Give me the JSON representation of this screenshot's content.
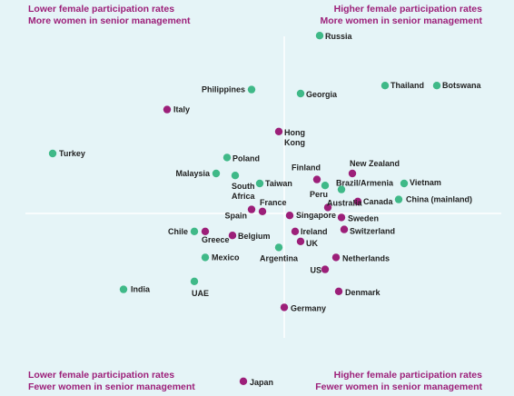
{
  "quadrants": {
    "top_left": {
      "line1": "Lower female participation rates",
      "line2": "More women in senior management"
    },
    "top_right": {
      "line1": "Higher female participation rates",
      "line2": "More women in senior management"
    },
    "bottom_left": {
      "line1": "Lower female participation rates",
      "line2": "Fewer women in senior management"
    },
    "bottom_right": {
      "line1": "Higher female participation rates",
      "line2": "Fewer women in senior management"
    }
  },
  "colors": {
    "background": "#e5f4f7",
    "green": "#3fb988",
    "purple": "#9c1f79",
    "axis": "#ffffff",
    "label": "#1f1f1f"
  },
  "chart_data": {
    "type": "scatter",
    "title": "",
    "xlabel": "",
    "ylabel": "",
    "xlim": [
      -1,
      1
    ],
    "ylim": [
      -1,
      1
    ],
    "grid": false,
    "quadrant_axes": true,
    "series": [
      {
        "color": "green",
        "points": [
          {
            "label": "Russia",
            "x": 0.13,
            "y": 0.89
          },
          {
            "label": "Philippines",
            "x": -0.12,
            "y": 0.62
          },
          {
            "label": "Georgia",
            "x": 0.06,
            "y": 0.6
          },
          {
            "label": "Thailand",
            "x": 0.37,
            "y": 0.64
          },
          {
            "label": "Botswana",
            "x": 0.56,
            "y": 0.64
          },
          {
            "label": "Turkey",
            "x": -0.85,
            "y": 0.3
          },
          {
            "label": "Poland",
            "x": -0.21,
            "y": 0.28
          },
          {
            "label": "Malaysia",
            "x": -0.25,
            "y": 0.2
          },
          {
            "label": "South Africa",
            "x": -0.18,
            "y": 0.19
          },
          {
            "label": "Taiwan",
            "x": -0.09,
            "y": 0.15
          },
          {
            "label": "Peru",
            "x": 0.15,
            "y": 0.14
          },
          {
            "label": "Brazil/Armenia",
            "x": 0.21,
            "y": 0.12
          },
          {
            "label": "Vietnam",
            "x": 0.44,
            "y": 0.15
          },
          {
            "label": "China (mainland)",
            "x": 0.42,
            "y": 0.07
          },
          {
            "label": "Chile",
            "x": -0.33,
            "y": -0.09
          },
          {
            "label": "Argentina",
            "x": -0.02,
            "y": -0.17
          },
          {
            "label": "Mexico",
            "x": -0.29,
            "y": -0.22
          },
          {
            "label": "India",
            "x": -0.59,
            "y": -0.38
          },
          {
            "label": "UAE",
            "x": -0.33,
            "y": -0.34
          }
        ]
      },
      {
        "color": "purple",
        "points": [
          {
            "label": "Italy",
            "x": -0.43,
            "y": 0.52
          },
          {
            "label": "Hong Kong",
            "x": -0.02,
            "y": 0.41
          },
          {
            "label": "Finland",
            "x": 0.12,
            "y": 0.17
          },
          {
            "label": "New Zealand",
            "x": 0.25,
            "y": 0.2
          },
          {
            "label": "Canada",
            "x": 0.27,
            "y": 0.06
          },
          {
            "label": "Australia",
            "x": 0.16,
            "y": 0.03
          },
          {
            "label": "France",
            "x": -0.08,
            "y": 0.01
          },
          {
            "label": "Spain",
            "x": -0.12,
            "y": 0.02
          },
          {
            "label": "Singapore",
            "x": 0.02,
            "y": -0.01
          },
          {
            "label": "Sweden",
            "x": 0.21,
            "y": -0.02
          },
          {
            "label": "Ireland",
            "x": 0.04,
            "y": -0.09
          },
          {
            "label": "Switzerland",
            "x": 0.22,
            "y": -0.08
          },
          {
            "label": "Greece",
            "x": -0.29,
            "y": -0.09
          },
          {
            "label": "Belgium",
            "x": -0.19,
            "y": -0.11
          },
          {
            "label": "UK",
            "x": 0.06,
            "y": -0.14
          },
          {
            "label": "Netherlands",
            "x": 0.19,
            "y": -0.22
          },
          {
            "label": "US",
            "x": 0.15,
            "y": -0.28
          },
          {
            "label": "Denmark",
            "x": 0.2,
            "y": -0.39
          },
          {
            "label": "Germany",
            "x": 0.0,
            "y": -0.47
          },
          {
            "label": "Japan",
            "x": -0.15,
            "y": -0.84
          }
        ]
      }
    ]
  }
}
